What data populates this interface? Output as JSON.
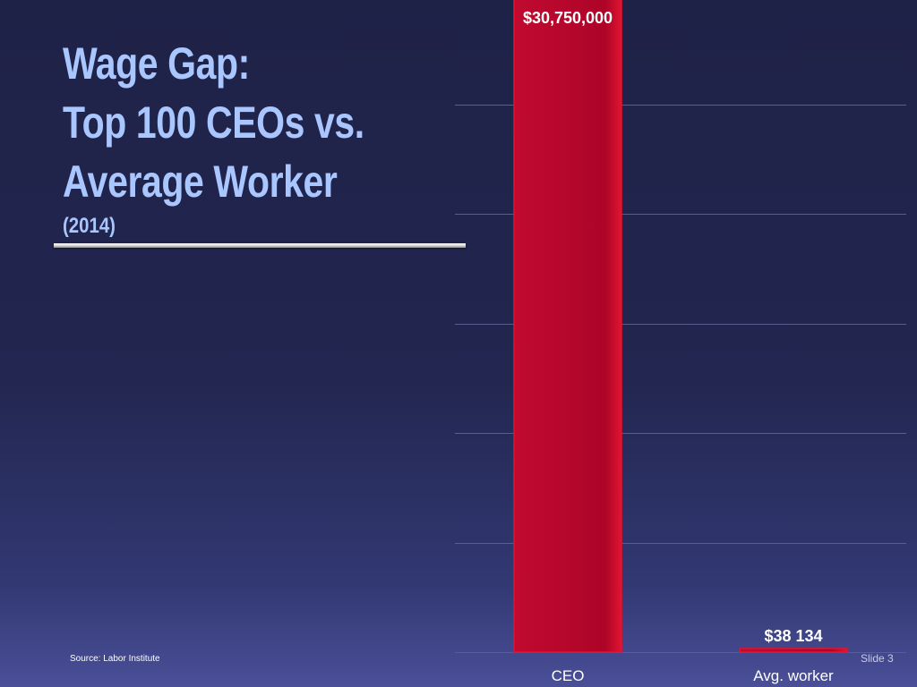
{
  "slide": {
    "title_lines": [
      "Wage Gap:",
      "Top 100 CEOs vs.",
      "Average Worker"
    ],
    "subtitle": "(2014)",
    "source": "Source: Labor Institute",
    "slide_number": "Slide 3"
  },
  "colors": {
    "title": "#a9c6ff",
    "bar": "#b0052a",
    "bar_edge": "#e8102c",
    "gridline": "#5a5e8a",
    "label": "#ffffff"
  },
  "chart_data": {
    "type": "bar",
    "title": "Wage Gap: Top 100 CEOs vs. Average Worker (2014)",
    "categories": [
      "CEO",
      "Avg. worker"
    ],
    "values": [
      30750000,
      38134
    ],
    "data_labels": [
      "$30,750,000",
      "$38 134"
    ],
    "ylim": [
      0,
      25000000
    ],
    "y_gridlines": [
      5000000,
      10000000,
      15000000,
      20000000,
      25000000
    ],
    "grid": true,
    "legend": "none",
    "xlabel": "",
    "ylabel": ""
  }
}
